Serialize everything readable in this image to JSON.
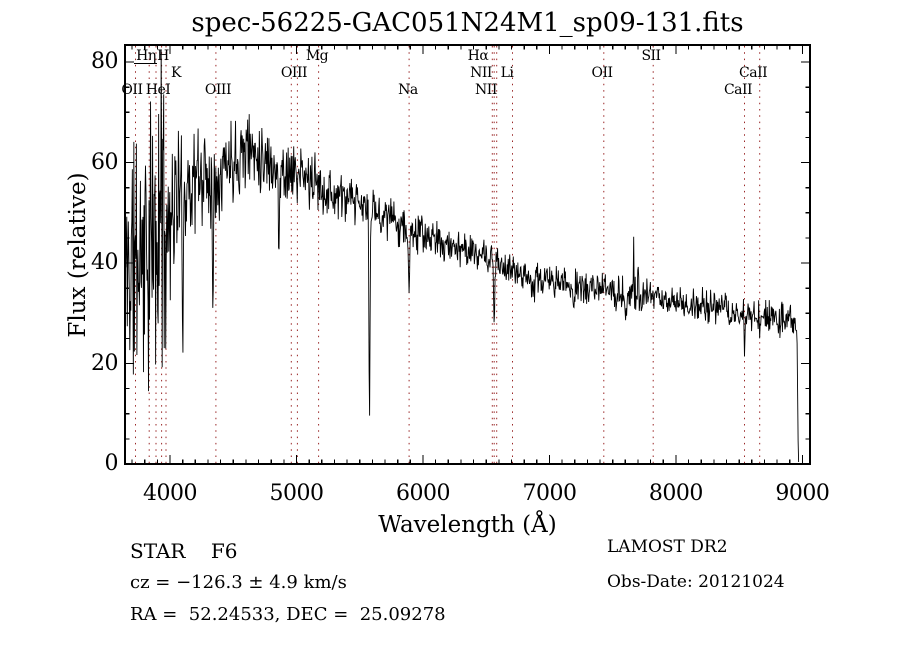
{
  "chart_data": {
    "type": "line",
    "title": "spec-56225-GAC051N24M1_sp09-131.fits",
    "xlabel": "Wavelength (Å)",
    "ylabel": "Flux (relative)",
    "xlim": [
      3644,
      9060
    ],
    "ylim": [
      0,
      83.4
    ],
    "x_ticks": [
      4000,
      5000,
      6000,
      7000,
      8000,
      9000
    ],
    "x_minor_step": 100,
    "y_ticks": [
      0,
      20,
      40,
      60,
      80
    ],
    "y_minor_step": 5,
    "grid": false,
    "legend": "none",
    "line_color": "#000000",
    "marker_line_color": "#992626",
    "spectral_line_markers": {
      "dotted_wavelengths": [
        3727,
        3835,
        3889,
        3933,
        3968,
        4363,
        4959,
        5007,
        5175,
        5890,
        6548,
        6563,
        6583,
        6708,
        7430,
        7820,
        8542,
        8662
      ],
      "labels": [
        {
          "text": "Hη",
          "row": 1,
          "at": 3810
        },
        {
          "text": "H",
          "row": 1,
          "at": 3944
        },
        {
          "text": "K",
          "row": 2,
          "at": 4047
        },
        {
          "text": "OII",
          "row": 3,
          "at": 3699
        },
        {
          "text": "HeI",
          "row": 3,
          "at": 3905
        },
        {
          "text": "OIII",
          "row": 3,
          "at": 4379
        },
        {
          "text": "OIII",
          "row": 2,
          "at": 4980
        },
        {
          "text": "Mg",
          "row": 1,
          "at": 5162
        },
        {
          "text": "Na",
          "row": 3,
          "at": 5881
        },
        {
          "text": "Hα",
          "row": 1,
          "at": 6435
        },
        {
          "text": "NII",
          "row": 2,
          "at": 6459
        },
        {
          "text": "Li",
          "row": 2,
          "at": 6664
        },
        {
          "text": "NII",
          "row": 3,
          "at": 6498
        },
        {
          "text": "OII",
          "row": 2,
          "at": 7416
        },
        {
          "text": "SII",
          "row": 1,
          "at": 7803
        },
        {
          "text": "CaII",
          "row": 2,
          "at": 8610
        },
        {
          "text": "CaII",
          "row": 3,
          "at": 8491
        }
      ]
    },
    "spectrum": {
      "wavelength_start": 3650,
      "wavelength_end": 8970,
      "sample_step": 4,
      "noise_seed": 11,
      "continuum": [
        [
          3650,
          38
        ],
        [
          3700,
          40
        ],
        [
          3750,
          42
        ],
        [
          3800,
          43
        ],
        [
          3850,
          42
        ],
        [
          3900,
          43
        ],
        [
          3950,
          46
        ],
        [
          4000,
          50
        ],
        [
          4050,
          53
        ],
        [
          4100,
          54
        ],
        [
          4150,
          56
        ],
        [
          4250,
          57
        ],
        [
          4350,
          58
        ],
        [
          4450,
          60
        ],
        [
          4550,
          62
        ],
        [
          4600,
          63
        ],
        [
          4700,
          62
        ],
        [
          4800,
          60
        ],
        [
          4900,
          58.5
        ],
        [
          5000,
          57.5
        ],
        [
          5100,
          56.5
        ],
        [
          5200,
          55
        ],
        [
          5300,
          53.5
        ],
        [
          5400,
          52.5
        ],
        [
          5500,
          51.5
        ],
        [
          5600,
          50.5
        ],
        [
          5700,
          49.5
        ],
        [
          5800,
          48
        ],
        [
          5900,
          46.5
        ],
        [
          6000,
          45.5
        ],
        [
          6100,
          44.5
        ],
        [
          6200,
          43.5
        ],
        [
          6300,
          43
        ],
        [
          6400,
          42
        ],
        [
          6500,
          41
        ],
        [
          6600,
          39.5
        ],
        [
          6700,
          38.5
        ],
        [
          6800,
          38
        ],
        [
          6900,
          37
        ],
        [
          7000,
          36.5
        ],
        [
          7100,
          36
        ],
        [
          7200,
          35.5
        ],
        [
          7300,
          35
        ],
        [
          7400,
          34.8
        ],
        [
          7500,
          34.4
        ],
        [
          7600,
          34
        ],
        [
          7700,
          33.6
        ],
        [
          7800,
          33.2
        ],
        [
          7900,
          33
        ],
        [
          8000,
          32.2
        ],
        [
          8100,
          31.8
        ],
        [
          8200,
          31.4
        ],
        [
          8300,
          31
        ],
        [
          8400,
          30.5
        ],
        [
          8500,
          30
        ],
        [
          8600,
          29.6
        ],
        [
          8700,
          29.2
        ],
        [
          8800,
          28.8
        ],
        [
          8900,
          28.5
        ],
        [
          8970,
          27.5
        ]
      ],
      "noise_amplitude": [
        [
          3650,
          16
        ],
        [
          3700,
          19
        ],
        [
          3750,
          20
        ],
        [
          3800,
          20
        ],
        [
          3850,
          21
        ],
        [
          3900,
          21
        ],
        [
          3950,
          18
        ],
        [
          4000,
          12
        ],
        [
          4050,
          9.5
        ],
        [
          4100,
          8.5
        ],
        [
          4200,
          8
        ],
        [
          4300,
          7.5
        ],
        [
          4400,
          6.5
        ],
        [
          4500,
          6
        ],
        [
          4700,
          5
        ],
        [
          4900,
          4.5
        ],
        [
          5100,
          4
        ],
        [
          5300,
          3.5
        ],
        [
          5600,
          3
        ],
        [
          5900,
          2.8
        ],
        [
          6200,
          2.5
        ],
        [
          6500,
          2.2
        ],
        [
          6800,
          2.4
        ],
        [
          7100,
          2.2
        ],
        [
          7400,
          2.2
        ],
        [
          7700,
          2.6
        ],
        [
          8000,
          2.2
        ],
        [
          8300,
          2.4
        ],
        [
          8600,
          2.6
        ],
        [
          8970,
          2.8
        ]
      ],
      "absorption_features": [
        {
          "wavelength": 4101,
          "depth": 22,
          "sigma": 5
        },
        {
          "wavelength": 4340,
          "depth": 24,
          "sigma": 5
        },
        {
          "wavelength": 4861,
          "depth": 18,
          "sigma": 5
        },
        {
          "wavelength": 5577,
          "depth": 44,
          "sigma": 4
        },
        {
          "wavelength": 5890,
          "depth": 13,
          "sigma": 5
        },
        {
          "wavelength": 6563,
          "depth": 12,
          "sigma": 4
        },
        {
          "wavelength": 6870,
          "depth": 5,
          "sigma": 8
        },
        {
          "wavelength": 7190,
          "depth": 3.5,
          "sigma": 6
        },
        {
          "wavelength": 7605,
          "depth": 5,
          "sigma": 7
        },
        {
          "wavelength": 8498,
          "depth": 5,
          "sigma": 3
        },
        {
          "wavelength": 8542,
          "depth": 8,
          "sigma": 3
        },
        {
          "wavelength": 8662,
          "depth": 7,
          "sigma": 3
        }
      ],
      "emission_spikes": [
        {
          "wavelength": 3930,
          "height": 38,
          "sigma": 3
        },
        {
          "wavelength": 7665,
          "height": 8,
          "sigma": 3
        },
        {
          "wavelength": 7700,
          "height": 4,
          "sigma": 2.5
        },
        {
          "wavelength": 8210,
          "height": 4,
          "sigma": 2.5
        },
        {
          "wavelength": 8905,
          "height": 6,
          "sigma": 2.5
        }
      ],
      "edge_cutoff": [
        8956,
        8968
      ]
    }
  },
  "annotations": {
    "class_label": "STAR    F6",
    "survey": "LAMOST DR2",
    "cz": "cz = −126.3 ± 4.9 km/s",
    "obs_date": "Obs-Date: 20121024",
    "coords": "RA =  52.24533, DEC =  25.09278"
  }
}
